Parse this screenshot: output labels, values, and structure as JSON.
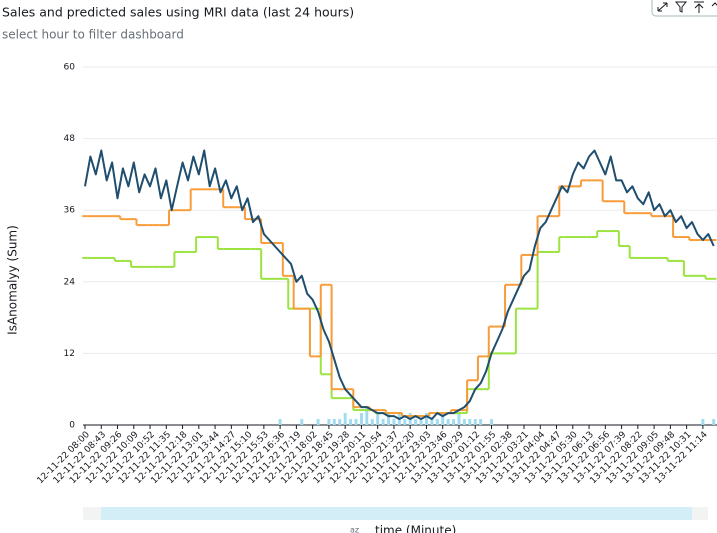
{
  "chart_data": {
    "type": "line",
    "title": "Sales and predicted sales using MRI data  (last 24 hours)",
    "subtitle": "select hour to filter dashboard",
    "y_label": "IsAnomalyy (Sum)",
    "x_label": "time (Minute)",
    "sort_indicator": "az",
    "ylim": [
      0,
      60
    ],
    "yticks": [
      0,
      12,
      24,
      36,
      48,
      60
    ],
    "grid": true,
    "categories": [
      "12-11-22 08:00",
      null,
      null,
      "12-11-22 08:43",
      null,
      null,
      "12-11-22 09:26",
      null,
      null,
      "12-11-22 10:09",
      null,
      null,
      "12-11-22 10:52",
      null,
      null,
      "12-11-22 11:35",
      null,
      null,
      "12-11-22 12:18",
      null,
      null,
      "12-11-22 13:01",
      null,
      null,
      "12-11-22 13:44",
      null,
      null,
      "12-11-22 14:27",
      null,
      null,
      "12-11-22 15:10",
      null,
      null,
      "12-11-22 15:53",
      null,
      null,
      "12-11-22 16:36",
      null,
      null,
      "12-11-22 17:19",
      null,
      null,
      "12-11-22 18:02",
      null,
      null,
      "12-11-22 18:45",
      null,
      null,
      "12-11-22 19:28",
      null,
      null,
      "12-11-22 20:11",
      null,
      null,
      "12-11-22 20:54",
      null,
      null,
      "12-11-22 21:37",
      null,
      null,
      "12-11-22 22:20",
      null,
      null,
      "12-11-22 23:03",
      null,
      null,
      "12-11-22 23:46",
      null,
      null,
      "13-11-22 00:29",
      null,
      null,
      "13-11-22 01:12",
      null,
      null,
      "13-11-22 01:55",
      null,
      null,
      "13-11-22 02:38",
      null,
      null,
      "13-11-22 03:21",
      null,
      null,
      "13-11-22 04:04",
      null,
      null,
      "13-11-22 04:47",
      null,
      null,
      "13-11-22 05:30",
      null,
      null,
      "13-11-22 06:13",
      null,
      null,
      "13-11-22 06:56",
      null,
      null,
      "13-11-22 07:39",
      null,
      null,
      "13-11-22 08:22",
      null,
      null,
      "13-11-22 09:05",
      null,
      null,
      "13-11-22 09:48",
      null,
      null,
      "13-11-22 10:31",
      null,
      null,
      "13-11-22 11:14",
      null,
      null
    ],
    "series": [
      {
        "type": "bar",
        "color": "#9fdcf0",
        "values": [
          0,
          0,
          0,
          0,
          0,
          0,
          0,
          0,
          0,
          0,
          0,
          0,
          0,
          0,
          0,
          0,
          0,
          0,
          0,
          0,
          0,
          0,
          0,
          0,
          0,
          0,
          0,
          0,
          0,
          0,
          0,
          0,
          0,
          0,
          0,
          0,
          1,
          0,
          0,
          0,
          1,
          0,
          0,
          1,
          0,
          1,
          1,
          1,
          2,
          1,
          1,
          2,
          3,
          1,
          2,
          1,
          2,
          1,
          2,
          1,
          2,
          1,
          1,
          2,
          1,
          1,
          2,
          1,
          1,
          2,
          1,
          1,
          1,
          1,
          0,
          1,
          0,
          0,
          0,
          0,
          0,
          0,
          0,
          0,
          0,
          0,
          0,
          0,
          0,
          0,
          0,
          0,
          0,
          0,
          0,
          0,
          0,
          0,
          0,
          0,
          0,
          0,
          0,
          0,
          0,
          0,
          0,
          0,
          0,
          0,
          0,
          0,
          0,
          0,
          1,
          0,
          1
        ]
      },
      {
        "type": "step",
        "color": "#9be33f",
        "values": [
          28,
          28,
          28,
          28,
          28,
          28,
          27.5,
          27.5,
          27.5,
          26.5,
          26.5,
          26.5,
          26.5,
          26.5,
          26.5,
          26.5,
          26.5,
          29,
          29,
          29,
          29,
          31.5,
          31.5,
          31.5,
          31.5,
          29.5,
          29.5,
          29.5,
          29.5,
          29.5,
          29.5,
          29.5,
          29.5,
          24.5,
          24.5,
          24.5,
          24.5,
          24.5,
          19.5,
          19.5,
          19.5,
          19.5,
          19.5,
          19.5,
          8.5,
          8.5,
          4.5,
          4.5,
          4.5,
          4.5,
          2.5,
          2.5,
          2.5,
          2.5,
          2,
          2,
          2,
          2,
          2,
          1.5,
          1.5,
          1.5,
          1.5,
          1.5,
          2,
          2,
          2,
          2,
          2,
          2,
          2,
          6,
          6,
          6,
          6,
          12,
          12,
          12,
          12,
          12,
          19.5,
          19.5,
          19.5,
          19.5,
          29,
          29,
          29,
          29,
          31.5,
          31.5,
          31.5,
          31.5,
          31.5,
          31.5,
          31.5,
          32.5,
          32.5,
          32.5,
          32.5,
          30,
          30,
          28,
          28,
          28,
          28,
          28,
          28,
          28,
          27.5,
          27.5,
          27.5,
          25,
          25,
          25,
          25,
          24.5,
          24.5
        ]
      },
      {
        "type": "step",
        "color": "#f89c3a",
        "values": [
          35,
          35,
          35,
          35,
          35,
          35,
          35,
          34.5,
          34.5,
          34.5,
          33.5,
          33.5,
          33.5,
          33.5,
          33.5,
          33.5,
          36,
          36,
          36,
          36,
          39.5,
          39.5,
          39.5,
          39.5,
          39.5,
          39.5,
          36.5,
          36.5,
          36.5,
          36.5,
          34.5,
          34.5,
          34.5,
          30.5,
          30.5,
          30.5,
          30.5,
          25,
          25,
          19.5,
          19.5,
          19.5,
          11.5,
          11.5,
          23.5,
          23.5,
          6,
          6,
          6,
          6,
          3,
          3,
          3,
          2.5,
          2.5,
          2.5,
          2,
          2,
          2,
          1.5,
          1.5,
          1.5,
          1.5,
          1.5,
          2,
          2,
          2,
          2,
          2.5,
          2.5,
          2.5,
          7.5,
          7.5,
          11.5,
          11.5,
          16.5,
          16.5,
          16.5,
          23.5,
          23.5,
          23.5,
          28.5,
          28.5,
          28.5,
          35,
          35,
          35,
          35,
          40,
          40,
          40,
          40,
          41,
          41,
          41,
          41,
          37.5,
          37.5,
          37.5,
          37.5,
          35.5,
          35.5,
          35.5,
          35.5,
          35.5,
          35,
          35,
          35,
          35,
          31.5,
          31.5,
          31.5,
          31,
          31,
          31,
          31,
          31
        ]
      },
      {
        "type": "line",
        "color": "#1f4e6e",
        "values": [
          40,
          45,
          42,
          46,
          41,
          44,
          38,
          43,
          40,
          44,
          39,
          42,
          40,
          43,
          38,
          41,
          36,
          40,
          44,
          41,
          45,
          42,
          46,
          40,
          43,
          39,
          41,
          38,
          40,
          36,
          38,
          34,
          35,
          32,
          31,
          30,
          29,
          28,
          27,
          24,
          25,
          22,
          21,
          19,
          16,
          14,
          11,
          8,
          6,
          5,
          4,
          3,
          3,
          2.5,
          2,
          2,
          1.5,
          1.5,
          1,
          1.5,
          1,
          1.5,
          1,
          1.5,
          1,
          2,
          1.5,
          2,
          2,
          2.5,
          3,
          4,
          6,
          7,
          9,
          12,
          14,
          16,
          19,
          21,
          23,
          25,
          26,
          30,
          33,
          34,
          36,
          38,
          40,
          39,
          42,
          44,
          43,
          45,
          46,
          44,
          42,
          45,
          41,
          41,
          39,
          40,
          38,
          37,
          39,
          36,
          37,
          35,
          36,
          34,
          35,
          33,
          34,
          32,
          31,
          32,
          30
        ]
      }
    ]
  }
}
